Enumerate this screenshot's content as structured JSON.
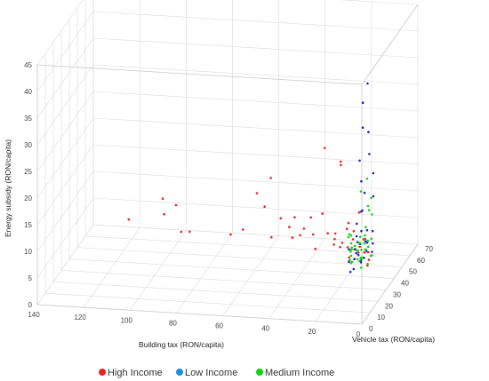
{
  "chart_data": {
    "type": "scatter",
    "dimensions": 3,
    "xlabel": "Building tax (RON/capita)",
    "ylabel": "Vehicle tax (RON/capita)",
    "zlabel": "Energy subsidy (RON/capita)",
    "x_ticks": [
      "0",
      "20",
      "40",
      "60",
      "80",
      "100",
      "120",
      "140"
    ],
    "y_ticks": [
      "0",
      "10",
      "20",
      "30",
      "40",
      "50",
      "60",
      "70"
    ],
    "z_ticks": [
      "0",
      "5",
      "10",
      "15",
      "20",
      "25",
      "30",
      "35",
      "40",
      "45"
    ],
    "xlim": [
      0,
      140
    ],
    "ylim": [
      0,
      70
    ],
    "zlim": [
      0,
      45
    ],
    "grid": true,
    "legend_position": "bottom",
    "series": [
      {
        "name": "High Income",
        "color": "#e8221f",
        "points": [
          [
            123,
            65,
            2.5
          ],
          [
            108,
            64,
            7
          ],
          [
            106,
            60,
            5
          ],
          [
            103,
            66,
            5.5
          ],
          [
            100,
            64,
            1
          ],
          [
            95,
            60,
            2
          ],
          [
            78,
            62,
            1.5
          ],
          [
            72,
            60,
            3
          ],
          [
            66,
            60,
            10
          ],
          [
            62,
            58,
            8
          ],
          [
            60,
            60,
            13
          ],
          [
            58,
            55,
            3
          ],
          [
            55,
            58,
            6
          ],
          [
            52,
            60,
            4
          ],
          [
            50,
            58,
            2.5
          ],
          [
            48,
            55,
            7
          ],
          [
            46,
            56,
            3.5
          ],
          [
            44,
            55,
            5
          ],
          [
            42,
            58,
            6.5
          ],
          [
            40,
            55,
            4
          ],
          [
            38,
            52,
            2
          ],
          [
            36,
            55,
            8
          ],
          [
            34,
            52,
            21
          ],
          [
            32,
            50,
            5.5
          ],
          [
            30,
            52,
            3
          ],
          [
            29,
            50,
            4.5
          ],
          [
            28,
            48,
            6
          ],
          [
            27,
            52,
            18
          ],
          [
            26,
            48,
            3.5
          ],
          [
            25,
            46,
            20
          ],
          [
            24,
            45,
            5
          ],
          [
            23,
            48,
            7
          ],
          [
            22,
            46,
            4
          ],
          [
            21,
            44,
            9
          ],
          [
            20,
            42,
            3
          ],
          [
            19,
            44,
            6
          ],
          [
            18,
            42,
            8
          ],
          [
            17,
            40,
            5
          ],
          [
            16,
            42,
            4
          ],
          [
            15,
            40,
            12
          ],
          [
            14,
            38,
            6
          ],
          [
            13,
            40,
            7
          ],
          [
            12,
            38,
            5
          ],
          [
            11,
            36,
            8
          ],
          [
            10,
            36,
            3
          ],
          [
            9,
            34,
            6
          ],
          [
            8,
            32,
            5
          ]
        ]
      },
      {
        "name": "Low Income",
        "color": "#1e21c8",
        "points": [
          [
            6,
            3,
            9
          ],
          [
            5,
            5,
            11
          ],
          [
            7,
            4,
            13
          ],
          [
            4,
            6,
            14
          ],
          [
            8,
            7,
            10
          ],
          [
            3,
            2,
            16
          ],
          [
            6,
            9,
            12
          ],
          [
            2,
            5,
            20
          ],
          [
            5,
            8,
            17
          ],
          [
            7,
            10,
            8
          ],
          [
            4,
            11,
            15
          ],
          [
            3,
            8,
            25
          ],
          [
            2,
            3,
            30
          ],
          [
            1,
            4,
            36
          ],
          [
            2,
            7,
            40
          ],
          [
            3,
            12,
            22
          ],
          [
            6,
            13,
            10
          ],
          [
            8,
            14,
            9
          ],
          [
            5,
            15,
            18
          ],
          [
            4,
            16,
            12
          ],
          [
            7,
            18,
            11
          ],
          [
            6,
            20,
            8
          ],
          [
            9,
            19,
            9
          ],
          [
            5,
            21,
            13
          ],
          [
            3,
            18,
            28
          ],
          [
            2,
            14,
            33
          ],
          [
            1,
            10,
            43
          ],
          [
            8,
            22,
            7
          ],
          [
            6,
            24,
            10
          ],
          [
            4,
            25,
            12
          ],
          [
            7,
            26,
            8
          ],
          [
            5,
            28,
            9
          ],
          [
            9,
            25,
            6
          ],
          [
            3,
            23,
            19
          ],
          [
            2,
            20,
            24
          ],
          [
            6,
            30,
            7
          ]
        ]
      },
      {
        "name": "Medium Income",
        "color": "#13d313",
        "points": [
          [
            15,
            30,
            6
          ],
          [
            14,
            28,
            8
          ],
          [
            13,
            32,
            5
          ],
          [
            12,
            30,
            7
          ],
          [
            11,
            28,
            9
          ],
          [
            10,
            26,
            6
          ],
          [
            16,
            34,
            4
          ],
          [
            17,
            36,
            7
          ],
          [
            18,
            38,
            5
          ],
          [
            12,
            34,
            3
          ],
          [
            10,
            32,
            8
          ],
          [
            9,
            30,
            10
          ],
          [
            8,
            28,
            12
          ],
          [
            11,
            36,
            6
          ],
          [
            13,
            38,
            4
          ],
          [
            14,
            40,
            5
          ],
          [
            15,
            42,
            3
          ],
          [
            9,
            34,
            7
          ],
          [
            8,
            36,
            5
          ],
          [
            7,
            32,
            9
          ],
          [
            10,
            40,
            4
          ],
          [
            12,
            42,
            2
          ],
          [
            6,
            30,
            14
          ],
          [
            7,
            28,
            16
          ],
          [
            5,
            26,
            18
          ],
          [
            9,
            24,
            11
          ],
          [
            11,
            26,
            8
          ],
          [
            13,
            24,
            6
          ],
          [
            20,
            44,
            4
          ],
          [
            19,
            40,
            3
          ],
          [
            16,
            46,
            2
          ],
          [
            14,
            48,
            5
          ],
          [
            18,
            50,
            4
          ],
          [
            22,
            48,
            6
          ],
          [
            21,
            52,
            3
          ],
          [
            17,
            54,
            2
          ],
          [
            24,
            56,
            4
          ],
          [
            23,
            50,
            5
          ],
          [
            10,
            38,
            13
          ],
          [
            8,
            22,
            20
          ],
          [
            6,
            24,
            22
          ],
          [
            12,
            22,
            9
          ]
        ]
      }
    ]
  }
}
